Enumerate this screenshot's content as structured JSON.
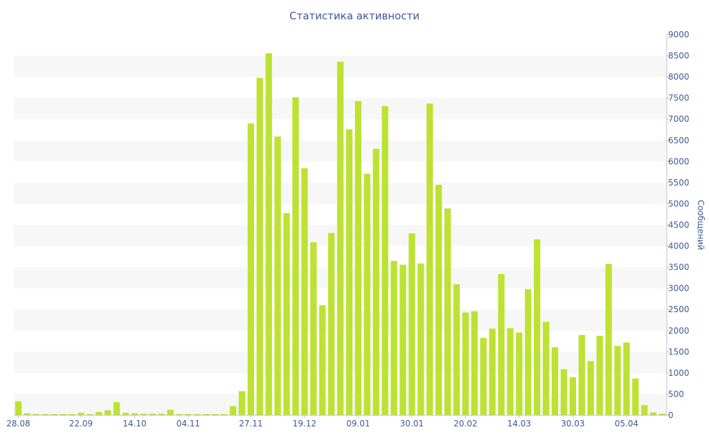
{
  "chart_data": {
    "type": "bar",
    "title": "Статистика активности",
    "ylabel": "Сообщений",
    "ylim": [
      0,
      9000
    ],
    "y_ticks": [
      0,
      500,
      1000,
      1500,
      2000,
      2500,
      3000,
      3500,
      4000,
      4500,
      5000,
      5500,
      6000,
      6500,
      7000,
      7500,
      8000,
      8500,
      9000
    ],
    "y_axis_side": "right",
    "x_tick_labels": [
      {
        "label": "28.08",
        "index": 0
      },
      {
        "label": "22.09",
        "index": 7
      },
      {
        "label": "14.10",
        "index": 13
      },
      {
        "label": "04.11",
        "index": 19
      },
      {
        "label": "27.11",
        "index": 26
      },
      {
        "label": "19.12",
        "index": 32
      },
      {
        "label": "09.01",
        "index": 38
      },
      {
        "label": "30.01",
        "index": 44
      },
      {
        "label": "20.02",
        "index": 50
      },
      {
        "label": "14.03",
        "index": 56
      },
      {
        "label": "30.03",
        "index": 62
      },
      {
        "label": "05.04",
        "index": 68
      }
    ],
    "values": [
      330,
      50,
      30,
      30,
      30,
      30,
      30,
      60,
      30,
      80,
      120,
      310,
      60,
      50,
      40,
      40,
      40,
      130,
      30,
      30,
      30,
      30,
      30,
      30,
      220,
      570,
      6900,
      7980,
      8560,
      6590,
      4780,
      7520,
      5840,
      4090,
      2600,
      4310,
      8360,
      6760,
      7430,
      5710,
      6300,
      7310,
      3650,
      3560,
      4300,
      3590,
      7370,
      5450,
      4890,
      3100,
      2430,
      2460,
      1830,
      2050,
      3340,
      2060,
      1960,
      2980,
      4160,
      2210,
      1610,
      1090,
      900,
      1900,
      1280,
      1880,
      3580,
      1640,
      1720,
      870,
      240,
      70,
      40
    ],
    "bar_color": "#bde232",
    "band_color": "#f7f7f7",
    "axis_text_color": "#3b5998",
    "grid": "alternating bands"
  }
}
